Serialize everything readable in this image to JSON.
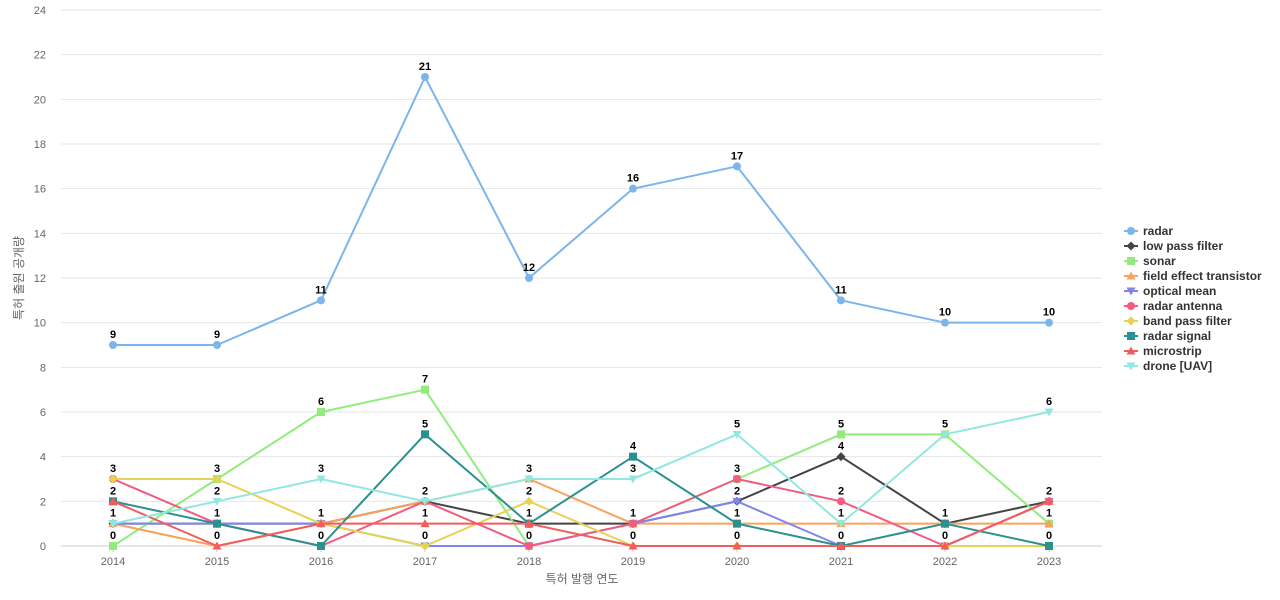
{
  "chart_data": {
    "type": "line",
    "title": "",
    "xlabel": "특허 발행 연도",
    "ylabel": "특허 출원 공개량",
    "x": [
      "2014",
      "2015",
      "2016",
      "2017",
      "2018",
      "2019",
      "2020",
      "2021",
      "2022",
      "2023"
    ],
    "ylim": [
      0,
      24
    ],
    "yticks": [
      0,
      2,
      4,
      6,
      8,
      10,
      12,
      14,
      16,
      18,
      20,
      22,
      24
    ],
    "grid": true,
    "legend_position": "right",
    "series": [
      {
        "name": "radar",
        "color": "#7cb5ec",
        "marker": "circle",
        "values": [
          9,
          9,
          11,
          21,
          12,
          16,
          17,
          11,
          10,
          10
        ]
      },
      {
        "name": "low pass filter",
        "color": "#434348",
        "marker": "diamond",
        "values": [
          1,
          1,
          1,
          2,
          1,
          1,
          2,
          4,
          1,
          2
        ]
      },
      {
        "name": "sonar",
        "color": "#90ed7d",
        "marker": "square",
        "values": [
          0,
          3,
          6,
          7,
          0,
          1,
          3,
          5,
          5,
          1
        ]
      },
      {
        "name": "field effect transistor",
        "color": "#f7a35c",
        "marker": "triangle",
        "values": [
          1,
          0,
          1,
          2,
          3,
          1,
          1,
          1,
          1,
          1
        ]
      },
      {
        "name": "optical mean",
        "color": "#8085e9",
        "marker": "triangle-down",
        "values": [
          1,
          1,
          1,
          0,
          0,
          1,
          2,
          0,
          0,
          2
        ]
      },
      {
        "name": "radar antenna",
        "color": "#f15c80",
        "marker": "circle",
        "values": [
          3,
          1,
          0,
          2,
          0,
          1,
          3,
          2,
          0,
          2
        ]
      },
      {
        "name": "band pass filter",
        "color": "#e4d354",
        "marker": "diamond",
        "values": [
          3,
          3,
          1,
          0,
          2,
          0,
          0,
          0,
          0,
          0
        ]
      },
      {
        "name": "radar signal",
        "color": "#2b908f",
        "marker": "square",
        "values": [
          2,
          1,
          0,
          5,
          1,
          4,
          1,
          0,
          1,
          0
        ]
      },
      {
        "name": "microstrip",
        "color": "#f45b5b",
        "marker": "triangle",
        "values": [
          2,
          0,
          1,
          1,
          1,
          0,
          0,
          0,
          0,
          2
        ]
      },
      {
        "name": "drone [UAV]",
        "color": "#91e8e1",
        "marker": "triangle-down",
        "values": [
          1,
          2,
          3,
          2,
          3,
          3,
          5,
          1,
          5,
          6
        ]
      }
    ],
    "data_labels": [
      {
        "x": "2014",
        "values": [
          "9",
          "3",
          "2",
          "1",
          "0"
        ]
      },
      {
        "x": "2015",
        "values": [
          "9",
          "3",
          "2",
          "1",
          "0"
        ]
      },
      {
        "x": "2016",
        "values": [
          "11",
          "6",
          "3",
          "1",
          "0"
        ]
      },
      {
        "x": "2017",
        "values": [
          "21",
          "7",
          "5",
          "2",
          "1",
          "0"
        ]
      },
      {
        "x": "2018",
        "values": [
          "12",
          "3",
          "2",
          "1",
          "0"
        ]
      },
      {
        "x": "2019",
        "values": [
          "16",
          "4",
          "3",
          "1",
          "0"
        ]
      },
      {
        "x": "2020",
        "values": [
          "17",
          "5",
          "3",
          "2",
          "1",
          "0"
        ]
      },
      {
        "x": "2021",
        "values": [
          "11",
          "5",
          "4",
          "2",
          "1",
          "0"
        ]
      },
      {
        "x": "2022",
        "values": [
          "10",
          "5",
          "1",
          "0"
        ]
      },
      {
        "x": "2023",
        "values": [
          "10",
          "6",
          "2",
          "1",
          "0"
        ]
      }
    ]
  }
}
